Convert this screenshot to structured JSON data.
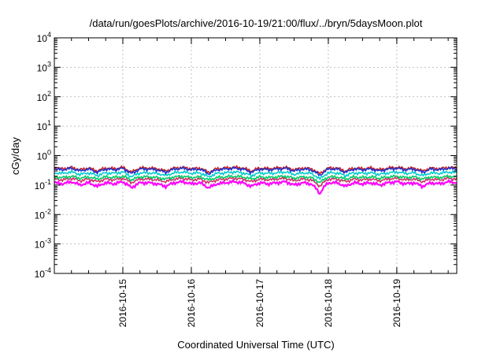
{
  "chart_data": {
    "type": "line",
    "title": "/data/run/goesPlots/archive/2016-10-19/21:00/flux/../bryn/5daysMoon.plot",
    "xlabel": "Coordinated Universal Time (UTC)",
    "ylabel": "cGy/day",
    "yscale": "log",
    "ylim": [
      0.0001,
      10000
    ],
    "xlim": [
      "2016-10-14 00:00",
      "2016-10-19 21:00"
    ],
    "grid": true,
    "legend": "none",
    "y_ticks": [
      {
        "base": "10",
        "exp": "-4"
      },
      {
        "base": "10",
        "exp": "-3"
      },
      {
        "base": "10",
        "exp": "-2"
      },
      {
        "base": "10",
        "exp": "-1"
      },
      {
        "base": "10",
        "exp": "0"
      },
      {
        "base": "10",
        "exp": "1"
      },
      {
        "base": "10",
        "exp": "2"
      },
      {
        "base": "10",
        "exp": "3"
      },
      {
        "base": "10",
        "exp": "4"
      }
    ],
    "x_ticks": [
      "2016-10-15",
      "2016-10-16",
      "2016-10-17",
      "2016-10-18",
      "2016-10-19"
    ],
    "series": [
      {
        "color": "#ff00ff",
        "base": 0.12,
        "values": [
          0.12,
          0.11,
          0.13,
          0.1,
          0.12,
          0.09,
          0.12,
          0.11,
          0.13,
          0.08,
          0.12,
          0.12,
          0.11,
          0.09,
          0.12,
          0.13,
          0.11,
          0.12,
          0.08,
          0.11,
          0.12,
          0.13,
          0.12,
          0.09,
          0.12,
          0.11,
          0.12,
          0.13,
          0.1,
          0.12,
          0.11,
          0.05,
          0.12,
          0.12,
          0.09,
          0.12,
          0.11,
          0.12,
          0.1,
          0.12,
          0.13,
          0.11,
          0.12,
          0.09,
          0.12,
          0.11,
          0.13,
          0.12
        ]
      },
      {
        "color": "#cc3366",
        "base": 0.16,
        "values": [
          0.16,
          0.15,
          0.17,
          0.14,
          0.16,
          0.13,
          0.16,
          0.15,
          0.17,
          0.12,
          0.16,
          0.16,
          0.15,
          0.13,
          0.16,
          0.17,
          0.15,
          0.16,
          0.12,
          0.15,
          0.16,
          0.17,
          0.16,
          0.13,
          0.16,
          0.15,
          0.16,
          0.17,
          0.14,
          0.16,
          0.15,
          0.09,
          0.16,
          0.16,
          0.13,
          0.16,
          0.15,
          0.16,
          0.14,
          0.16,
          0.17,
          0.15,
          0.16,
          0.13,
          0.16,
          0.15,
          0.17,
          0.16
        ]
      },
      {
        "color": "#00cc66",
        "base": 0.19,
        "values": [
          0.19,
          0.18,
          0.2,
          0.17,
          0.19,
          0.16,
          0.19,
          0.18,
          0.2,
          0.15,
          0.19,
          0.19,
          0.18,
          0.16,
          0.19,
          0.2,
          0.18,
          0.19,
          0.15,
          0.18,
          0.19,
          0.2,
          0.19,
          0.16,
          0.19,
          0.18,
          0.19,
          0.2,
          0.17,
          0.19,
          0.18,
          0.12,
          0.19,
          0.19,
          0.16,
          0.19,
          0.18,
          0.19,
          0.17,
          0.19,
          0.2,
          0.18,
          0.19,
          0.16,
          0.19,
          0.18,
          0.2,
          0.19
        ]
      },
      {
        "color": "#00cccc",
        "base": 0.26,
        "values": [
          0.26,
          0.25,
          0.28,
          0.23,
          0.26,
          0.21,
          0.26,
          0.25,
          0.28,
          0.19,
          0.26,
          0.26,
          0.25,
          0.21,
          0.26,
          0.28,
          0.25,
          0.26,
          0.19,
          0.25,
          0.26,
          0.28,
          0.26,
          0.21,
          0.26,
          0.25,
          0.26,
          0.28,
          0.23,
          0.26,
          0.25,
          0.16,
          0.26,
          0.26,
          0.21,
          0.26,
          0.25,
          0.26,
          0.23,
          0.26,
          0.28,
          0.25,
          0.26,
          0.21,
          0.26,
          0.25,
          0.28,
          0.26
        ]
      },
      {
        "color": "#cc2222",
        "base": 0.38,
        "values": [
          0.38,
          0.36,
          0.4,
          0.33,
          0.38,
          0.3,
          0.38,
          0.36,
          0.4,
          0.27,
          0.38,
          0.38,
          0.36,
          0.3,
          0.38,
          0.4,
          0.36,
          0.38,
          0.27,
          0.36,
          0.38,
          0.4,
          0.38,
          0.3,
          0.38,
          0.36,
          0.38,
          0.4,
          0.33,
          0.38,
          0.36,
          0.24,
          0.38,
          0.38,
          0.3,
          0.38,
          0.36,
          0.38,
          0.33,
          0.38,
          0.4,
          0.36,
          0.38,
          0.3,
          0.38,
          0.36,
          0.4,
          0.38
        ]
      },
      {
        "color": "#2233cc",
        "base": 0.35,
        "values": [
          0.35,
          0.33,
          0.37,
          0.3,
          0.35,
          0.27,
          0.35,
          0.33,
          0.37,
          0.24,
          0.35,
          0.35,
          0.33,
          0.27,
          0.35,
          0.37,
          0.33,
          0.35,
          0.24,
          0.33,
          0.35,
          0.37,
          0.35,
          0.27,
          0.35,
          0.33,
          0.35,
          0.37,
          0.3,
          0.35,
          0.33,
          0.21,
          0.35,
          0.35,
          0.27,
          0.35,
          0.33,
          0.35,
          0.3,
          0.35,
          0.37,
          0.33,
          0.35,
          0.27,
          0.35,
          0.33,
          0.37,
          0.35
        ]
      }
    ]
  }
}
